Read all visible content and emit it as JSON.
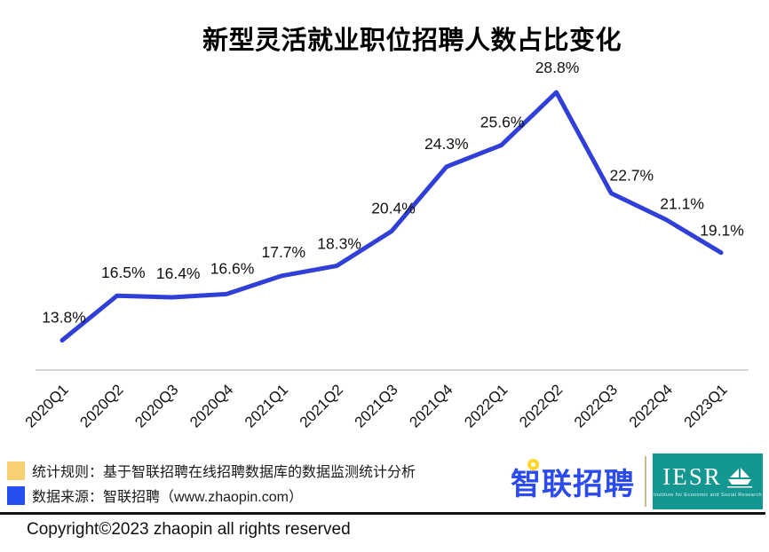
{
  "title": "新型灵活就业职位招聘人数占比变化",
  "chart_data": {
    "type": "line",
    "categories": [
      "2020Q1",
      "2020Q2",
      "2020Q3",
      "2020Q4",
      "2021Q1",
      "2021Q2",
      "2021Q3",
      "2021Q4",
      "2022Q1",
      "2022Q2",
      "2022Q3",
      "2022Q4",
      "2023Q1"
    ],
    "values": [
      13.8,
      16.5,
      16.4,
      16.6,
      17.7,
      18.3,
      20.4,
      24.3,
      25.6,
      28.8,
      22.7,
      21.1,
      19.1
    ],
    "value_labels": [
      "13.8%",
      "16.5%",
      "16.4%",
      "16.6%",
      "17.7%",
      "18.3%",
      "20.4%",
      "24.3%",
      "25.6%",
      "28.8%",
      "22.7%",
      "21.1%",
      "19.1%"
    ],
    "title": "新型灵活就业职位招聘人数占比变化",
    "xlabel": "",
    "ylabel": "",
    "ylim": [
      12,
      30
    ],
    "grid": false,
    "legend_position": "none",
    "line_color": "#2f3fd8",
    "axis_color": "#c9c9c9",
    "label_color": "#111111"
  },
  "legend": {
    "items": [
      {
        "swatch_color": "#f8d173",
        "label": "统计规则：基于智联招聘在线招聘数据库的数据监测统计分析"
      },
      {
        "swatch_color": "#2450f0",
        "label": "数据来源：智联招聘（www.zhaopin.com）"
      }
    ]
  },
  "branding": {
    "zhaopin_logo_text": "智联招聘",
    "zhaopin_blue": "#2b4bee",
    "pin_yellow": "#ffd629",
    "iesr_logo_text": "IESR",
    "iesr_subtitle": "Institute for Economic and Social Research",
    "iesr_teal": "#149691",
    "divider_tan": "#c9bc8f"
  },
  "footer": {
    "copyright": "Copyright©2023 zhaopin all rights reserved"
  }
}
